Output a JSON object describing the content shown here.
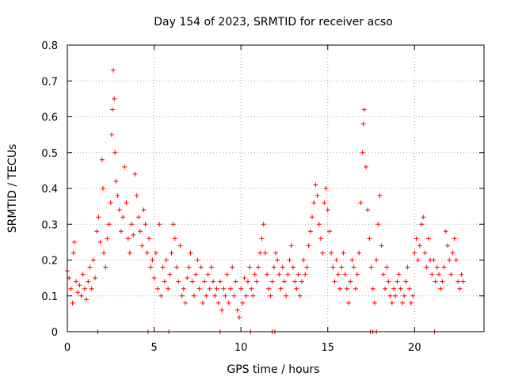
{
  "chart_data": {
    "type": "scatter",
    "title": "Day 154 of 2023, SRMTID for receiver acso",
    "xlabel": "GPS time / hours",
    "ylabel": "SRMTID / TECUs",
    "xlim": [
      0,
      24
    ],
    "ylim": [
      0,
      0.8
    ],
    "xticks": [
      0,
      5,
      10,
      15,
      20
    ],
    "xtick_labels": [
      "0",
      "5",
      "10",
      "15",
      "20"
    ],
    "yticks": [
      0,
      0.1,
      0.2,
      0.3,
      0.4,
      0.5,
      0.6,
      0.7,
      0.8
    ],
    "ytick_labels": [
      "0",
      "0.1",
      "0.2",
      "0.3",
      "0.4",
      "0.5",
      "0.6",
      "0.7",
      "0.8"
    ],
    "grid": true,
    "marker": "+",
    "color": "#ff0000",
    "series": [
      {
        "name": "SRMTID",
        "points": [
          [
            0.0,
            0.17
          ],
          [
            0.1,
            0.15
          ],
          [
            0.2,
            0.12
          ],
          [
            0.3,
            0.08
          ],
          [
            0.35,
            0.22
          ],
          [
            0.4,
            0.25
          ],
          [
            0.5,
            0.14
          ],
          [
            0.6,
            0.11
          ],
          [
            0.7,
            0.13
          ],
          [
            0.8,
            0.1
          ],
          [
            0.9,
            0.16
          ],
          [
            1.0,
            0.12
          ],
          [
            1.1,
            0.09
          ],
          [
            1.2,
            0.14
          ],
          [
            1.3,
            0.18
          ],
          [
            1.4,
            0.12
          ],
          [
            1.5,
            0.2
          ],
          [
            1.6,
            0.15
          ],
          [
            1.7,
            0.28
          ],
          [
            1.8,
            0.32
          ],
          [
            1.9,
            0.25
          ],
          [
            2.0,
            0.48
          ],
          [
            2.05,
            0.4
          ],
          [
            2.1,
            0.22
          ],
          [
            2.2,
            0.18
          ],
          [
            2.3,
            0.26
          ],
          [
            2.4,
            0.3
          ],
          [
            2.5,
            0.36
          ],
          [
            2.55,
            0.55
          ],
          [
            2.6,
            0.62
          ],
          [
            2.65,
            0.73
          ],
          [
            2.7,
            0.65
          ],
          [
            2.75,
            0.5
          ],
          [
            2.8,
            0.42
          ],
          [
            2.9,
            0.38
          ],
          [
            3.0,
            0.34
          ],
          [
            3.1,
            0.28
          ],
          [
            3.2,
            0.32
          ],
          [
            3.3,
            0.46
          ],
          [
            3.4,
            0.36
          ],
          [
            3.5,
            0.26
          ],
          [
            3.6,
            0.22
          ],
          [
            3.7,
            0.3
          ],
          [
            3.8,
            0.27
          ],
          [
            3.9,
            0.44
          ],
          [
            4.0,
            0.38
          ],
          [
            4.1,
            0.32
          ],
          [
            4.2,
            0.28
          ],
          [
            4.3,
            0.24
          ],
          [
            4.4,
            0.34
          ],
          [
            4.5,
            0.3
          ],
          [
            4.6,
            0.22
          ],
          [
            4.7,
            0.26
          ],
          [
            4.8,
            0.18
          ],
          [
            4.9,
            0.2
          ],
          [
            5.0,
            0.15
          ],
          [
            5.1,
            0.22
          ],
          [
            5.2,
            0.12
          ],
          [
            5.3,
            0.3
          ],
          [
            5.4,
            0.1
          ],
          [
            5.5,
            0.18
          ],
          [
            5.6,
            0.14
          ],
          [
            5.7,
            0.2
          ],
          [
            5.8,
            0.12
          ],
          [
            5.9,
            0.16
          ],
          [
            6.0,
            0.22
          ],
          [
            6.1,
            0.3
          ],
          [
            6.2,
            0.26
          ],
          [
            6.3,
            0.18
          ],
          [
            6.4,
            0.14
          ],
          [
            6.5,
            0.24
          ],
          [
            6.6,
            0.1
          ],
          [
            6.7,
            0.12
          ],
          [
            6.8,
            0.08
          ],
          [
            6.9,
            0.15
          ],
          [
            7.0,
            0.18
          ],
          [
            7.1,
            0.22
          ],
          [
            7.2,
            0.14
          ],
          [
            7.3,
            0.1
          ],
          [
            7.4,
            0.16
          ],
          [
            7.5,
            0.2
          ],
          [
            7.6,
            0.12
          ],
          [
            7.7,
            0.18
          ],
          [
            7.8,
            0.08
          ],
          [
            7.9,
            0.14
          ],
          [
            8.0,
            0.1
          ],
          [
            8.1,
            0.16
          ],
          [
            8.2,
            0.12
          ],
          [
            8.3,
            0.18
          ],
          [
            8.4,
            0.14
          ],
          [
            8.5,
            0.1
          ],
          [
            8.6,
            0.12
          ],
          [
            8.7,
            0.08
          ],
          [
            8.8,
            0.14
          ],
          [
            8.9,
            0.06
          ],
          [
            9.0,
            0.12
          ],
          [
            9.1,
            0.1
          ],
          [
            9.2,
            0.16
          ],
          [
            9.3,
            0.08
          ],
          [
            9.4,
            0.12
          ],
          [
            9.5,
            0.18
          ],
          [
            9.6,
            0.1
          ],
          [
            9.7,
            0.14
          ],
          [
            9.8,
            0.06
          ],
          [
            9.9,
            0.04
          ],
          [
            10.0,
            0.12
          ],
          [
            10.1,
            0.08
          ],
          [
            10.2,
            0.15
          ],
          [
            10.3,
            0.1
          ],
          [
            10.4,
            0.14
          ],
          [
            10.5,
            0.18
          ],
          [
            10.6,
            0.12
          ],
          [
            10.7,
            0.1
          ],
          [
            10.8,
            0.16
          ],
          [
            10.9,
            0.14
          ],
          [
            11.0,
            0.18
          ],
          [
            11.1,
            0.22
          ],
          [
            11.2,
            0.26
          ],
          [
            11.3,
            0.3
          ],
          [
            11.4,
            0.22
          ],
          [
            11.5,
            0.16
          ],
          [
            11.6,
            0.12
          ],
          [
            11.7,
            0.1
          ],
          [
            11.8,
            0.14
          ],
          [
            11.9,
            0.18
          ],
          [
            12.0,
            0.22
          ],
          [
            12.1,
            0.2
          ],
          [
            12.2,
            0.16
          ],
          [
            12.3,
            0.12
          ],
          [
            12.4,
            0.18
          ],
          [
            12.5,
            0.14
          ],
          [
            12.6,
            0.1
          ],
          [
            12.7,
            0.16
          ],
          [
            12.8,
            0.2
          ],
          [
            12.9,
            0.24
          ],
          [
            13.0,
            0.18
          ],
          [
            13.1,
            0.14
          ],
          [
            13.2,
            0.12
          ],
          [
            13.3,
            0.16
          ],
          [
            13.4,
            0.1
          ],
          [
            13.5,
            0.14
          ],
          [
            13.6,
            0.2
          ],
          [
            13.7,
            0.16
          ],
          [
            13.8,
            0.18
          ],
          [
            13.9,
            0.24
          ],
          [
            14.0,
            0.28
          ],
          [
            14.1,
            0.32
          ],
          [
            14.2,
            0.36
          ],
          [
            14.3,
            0.41
          ],
          [
            14.4,
            0.38
          ],
          [
            14.5,
            0.3
          ],
          [
            14.6,
            0.26
          ],
          [
            14.7,
            0.22
          ],
          [
            14.8,
            0.36
          ],
          [
            14.9,
            0.4
          ],
          [
            15.0,
            0.34
          ],
          [
            15.1,
            0.28
          ],
          [
            15.2,
            0.22
          ],
          [
            15.3,
            0.18
          ],
          [
            15.4,
            0.14
          ],
          [
            15.5,
            0.2
          ],
          [
            15.6,
            0.16
          ],
          [
            15.7,
            0.12
          ],
          [
            15.8,
            0.18
          ],
          [
            15.9,
            0.22
          ],
          [
            16.0,
            0.16
          ],
          [
            16.1,
            0.12
          ],
          [
            16.2,
            0.08
          ],
          [
            16.3,
            0.14
          ],
          [
            16.4,
            0.2
          ],
          [
            16.5,
            0.18
          ],
          [
            16.6,
            0.12
          ],
          [
            16.7,
            0.16
          ],
          [
            16.8,
            0.22
          ],
          [
            16.9,
            0.36
          ],
          [
            17.0,
            0.5
          ],
          [
            17.05,
            0.58
          ],
          [
            17.1,
            0.62
          ],
          [
            17.2,
            0.46
          ],
          [
            17.3,
            0.34
          ],
          [
            17.4,
            0.26
          ],
          [
            17.5,
            0.18
          ],
          [
            17.6,
            0.12
          ],
          [
            17.7,
            0.08
          ],
          [
            17.8,
            0.2
          ],
          [
            17.9,
            0.3
          ],
          [
            18.0,
            0.38
          ],
          [
            18.1,
            0.24
          ],
          [
            18.2,
            0.16
          ],
          [
            18.3,
            0.12
          ],
          [
            18.4,
            0.18
          ],
          [
            18.5,
            0.14
          ],
          [
            18.6,
            0.1
          ],
          [
            18.7,
            0.08
          ],
          [
            18.8,
            0.12
          ],
          [
            18.9,
            0.1
          ],
          [
            19.0,
            0.14
          ],
          [
            19.1,
            0.16
          ],
          [
            19.2,
            0.12
          ],
          [
            19.3,
            0.08
          ],
          [
            19.4,
            0.1
          ],
          [
            19.5,
            0.14
          ],
          [
            19.6,
            0.18
          ],
          [
            19.7,
            0.12
          ],
          [
            19.8,
            0.08
          ],
          [
            19.9,
            0.1
          ],
          [
            20.0,
            0.22
          ],
          [
            20.1,
            0.26
          ],
          [
            20.2,
            0.2
          ],
          [
            20.3,
            0.24
          ],
          [
            20.4,
            0.3
          ],
          [
            20.5,
            0.32
          ],
          [
            20.6,
            0.22
          ],
          [
            20.7,
            0.18
          ],
          [
            20.8,
            0.26
          ],
          [
            20.9,
            0.2
          ],
          [
            21.0,
            0.16
          ],
          [
            21.1,
            0.2
          ],
          [
            21.2,
            0.14
          ],
          [
            21.3,
            0.18
          ],
          [
            21.4,
            0.16
          ],
          [
            21.5,
            0.12
          ],
          [
            21.6,
            0.14
          ],
          [
            21.7,
            0.18
          ],
          [
            21.8,
            0.28
          ],
          [
            21.9,
            0.24
          ],
          [
            22.0,
            0.2
          ],
          [
            22.1,
            0.16
          ],
          [
            22.2,
            0.22
          ],
          [
            22.3,
            0.26
          ],
          [
            22.4,
            0.2
          ],
          [
            22.5,
            0.14
          ],
          [
            22.6,
            0.12
          ],
          [
            22.7,
            0.16
          ],
          [
            22.8,
            0.14
          ],
          [
            1.75,
            0.0
          ],
          [
            4.65,
            0.0
          ],
          [
            5.85,
            0.0
          ],
          [
            8.8,
            0.0
          ],
          [
            10.55,
            0.0
          ],
          [
            11.8,
            0.0
          ],
          [
            11.95,
            0.0
          ],
          [
            17.45,
            0.0
          ],
          [
            17.6,
            0.0
          ],
          [
            17.8,
            0.0
          ],
          [
            21.15,
            0.0
          ]
        ]
      }
    ]
  }
}
